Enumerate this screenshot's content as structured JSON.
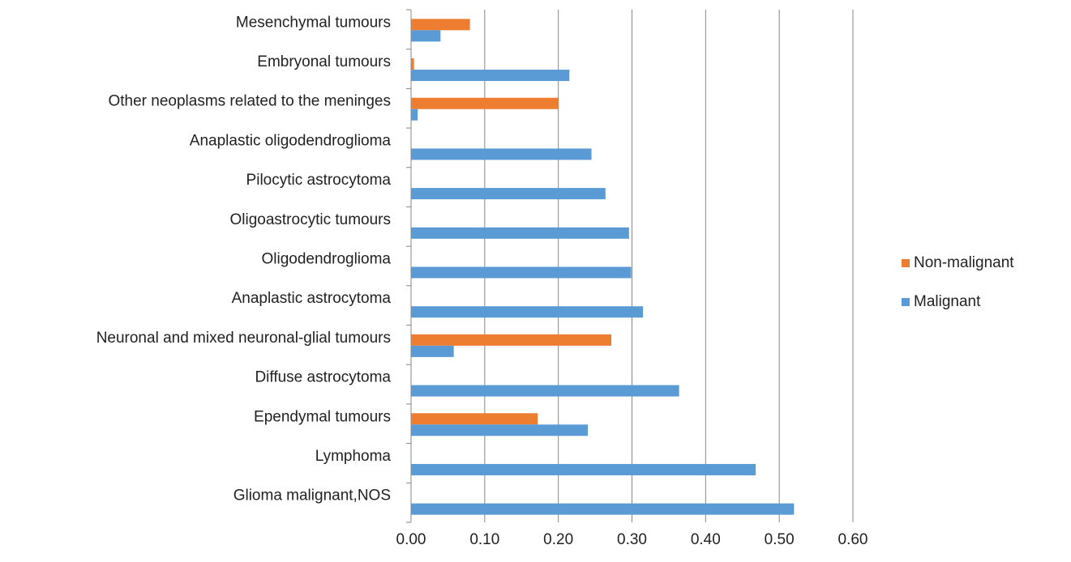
{
  "chart_data": {
    "type": "hbar",
    "categories": [
      "Mesenchymal tumours",
      "Embryonal tumours",
      "Other neoplasms related to the meninges",
      "Anaplastic oligodendroglioma",
      "Pilocytic astrocytoma",
      "Oligoastrocytic tumours",
      "Oligodendroglioma",
      "Anaplastic astrocytoma",
      "Neuronal and mixed neuronal-glial tumours",
      "Diffuse astrocytoma",
      "Ependymal tumours",
      "Lymphoma",
      "Glioma malignant,NOS"
    ],
    "series": [
      {
        "name": "Non-malignant",
        "color": "#ed7d31",
        "values": [
          0.08,
          0.004,
          0.2,
          null,
          null,
          null,
          null,
          null,
          0.272,
          null,
          0.172,
          null,
          null
        ]
      },
      {
        "name": "Malignant",
        "color": "#5b9bd5",
        "values": [
          0.04,
          0.215,
          0.009,
          0.245,
          0.264,
          0.296,
          0.299,
          0.315,
          0.058,
          0.364,
          0.24,
          0.468,
          0.52
        ]
      }
    ],
    "xlim": [
      0,
      0.6
    ],
    "xticks": [
      {
        "value": 0,
        "label": "0.00"
      },
      {
        "value": 0.1,
        "label": "0.10"
      },
      {
        "value": 0.2,
        "label": "0.20"
      },
      {
        "value": 0.3,
        "label": "0.30"
      },
      {
        "value": 0.4,
        "label": "0.40"
      },
      {
        "value": 0.5,
        "label": "0.50"
      },
      {
        "value": 0.6,
        "label": "0.60"
      }
    ],
    "grid": true,
    "legend": "right"
  }
}
